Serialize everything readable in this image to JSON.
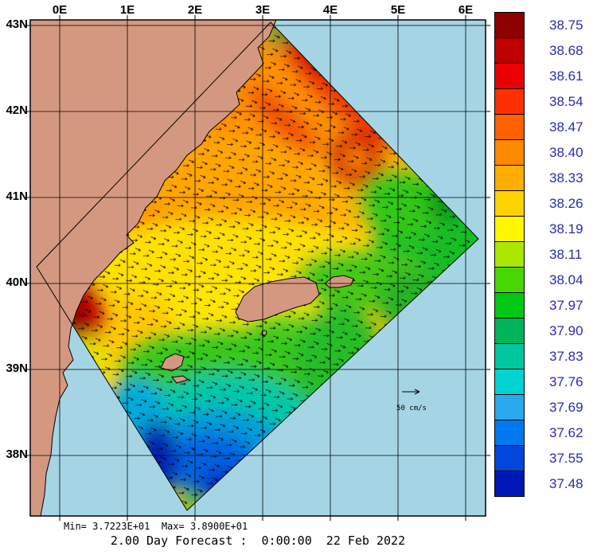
{
  "map": {
    "x_axis_labels": [
      "0E",
      "1E",
      "2E",
      "3E",
      "4E",
      "5E",
      "6E"
    ],
    "y_axis_labels": [
      "43N",
      "42N",
      "41N",
      "40N",
      "39N",
      "38N"
    ],
    "vector_scale_label": "50 cm/s"
  },
  "colorbar": {
    "entries": [
      {
        "value": "38.75",
        "color": "#8c0000"
      },
      {
        "value": "38.68",
        "color": "#bf0000"
      },
      {
        "value": "38.61",
        "color": "#ea0000"
      },
      {
        "value": "38.54",
        "color": "#ff3000"
      },
      {
        "value": "38.47",
        "color": "#ff6000"
      },
      {
        "value": "38.40",
        "color": "#ff8800"
      },
      {
        "value": "38.33",
        "color": "#ffae00"
      },
      {
        "value": "38.26",
        "color": "#ffd300"
      },
      {
        "value": "38.19",
        "color": "#fff600"
      },
      {
        "value": "38.11",
        "color": "#aae800"
      },
      {
        "value": "38.04",
        "color": "#46d800"
      },
      {
        "value": "37.97",
        "color": "#00c814"
      },
      {
        "value": "37.90",
        "color": "#00b45a"
      },
      {
        "value": "37.83",
        "color": "#00c69e"
      },
      {
        "value": "37.76",
        "color": "#00d2d2"
      },
      {
        "value": "37.69",
        "color": "#2aa8f0"
      },
      {
        "value": "37.62",
        "color": "#0078f0"
      },
      {
        "value": "37.55",
        "color": "#0046dc"
      },
      {
        "value": "37.48",
        "color": "#0016b4"
      }
    ]
  },
  "footer": {
    "minmax": "Min= 3.7223E+01  Max= 3.8900E+01",
    "caption": "2.00 Day Forecast :  0:00:00  22 Feb 2022"
  },
  "colors": {
    "sea": "#a5d5e5",
    "land": "#d49880"
  },
  "chart_data": {
    "type": "heatmap",
    "title": "2.00 Day Forecast :  0:00:00  22 Feb 2022",
    "x_ticks": [
      "0E",
      "1E",
      "2E",
      "3E",
      "4E",
      "5E",
      "6E"
    ],
    "y_ticks": [
      "43N",
      "42N",
      "41N",
      "40N",
      "39N",
      "38N"
    ],
    "colorbar_values": [
      38.75,
      38.68,
      38.61,
      38.54,
      38.47,
      38.4,
      38.33,
      38.26,
      38.19,
      38.11,
      38.04,
      37.97,
      37.9,
      37.83,
      37.76,
      37.69,
      37.62,
      37.55,
      37.48
    ],
    "field_min": 37.223,
    "field_max": 38.9,
    "vector_scale": "50 cm/s",
    "legend_position": "right",
    "grid": true
  }
}
